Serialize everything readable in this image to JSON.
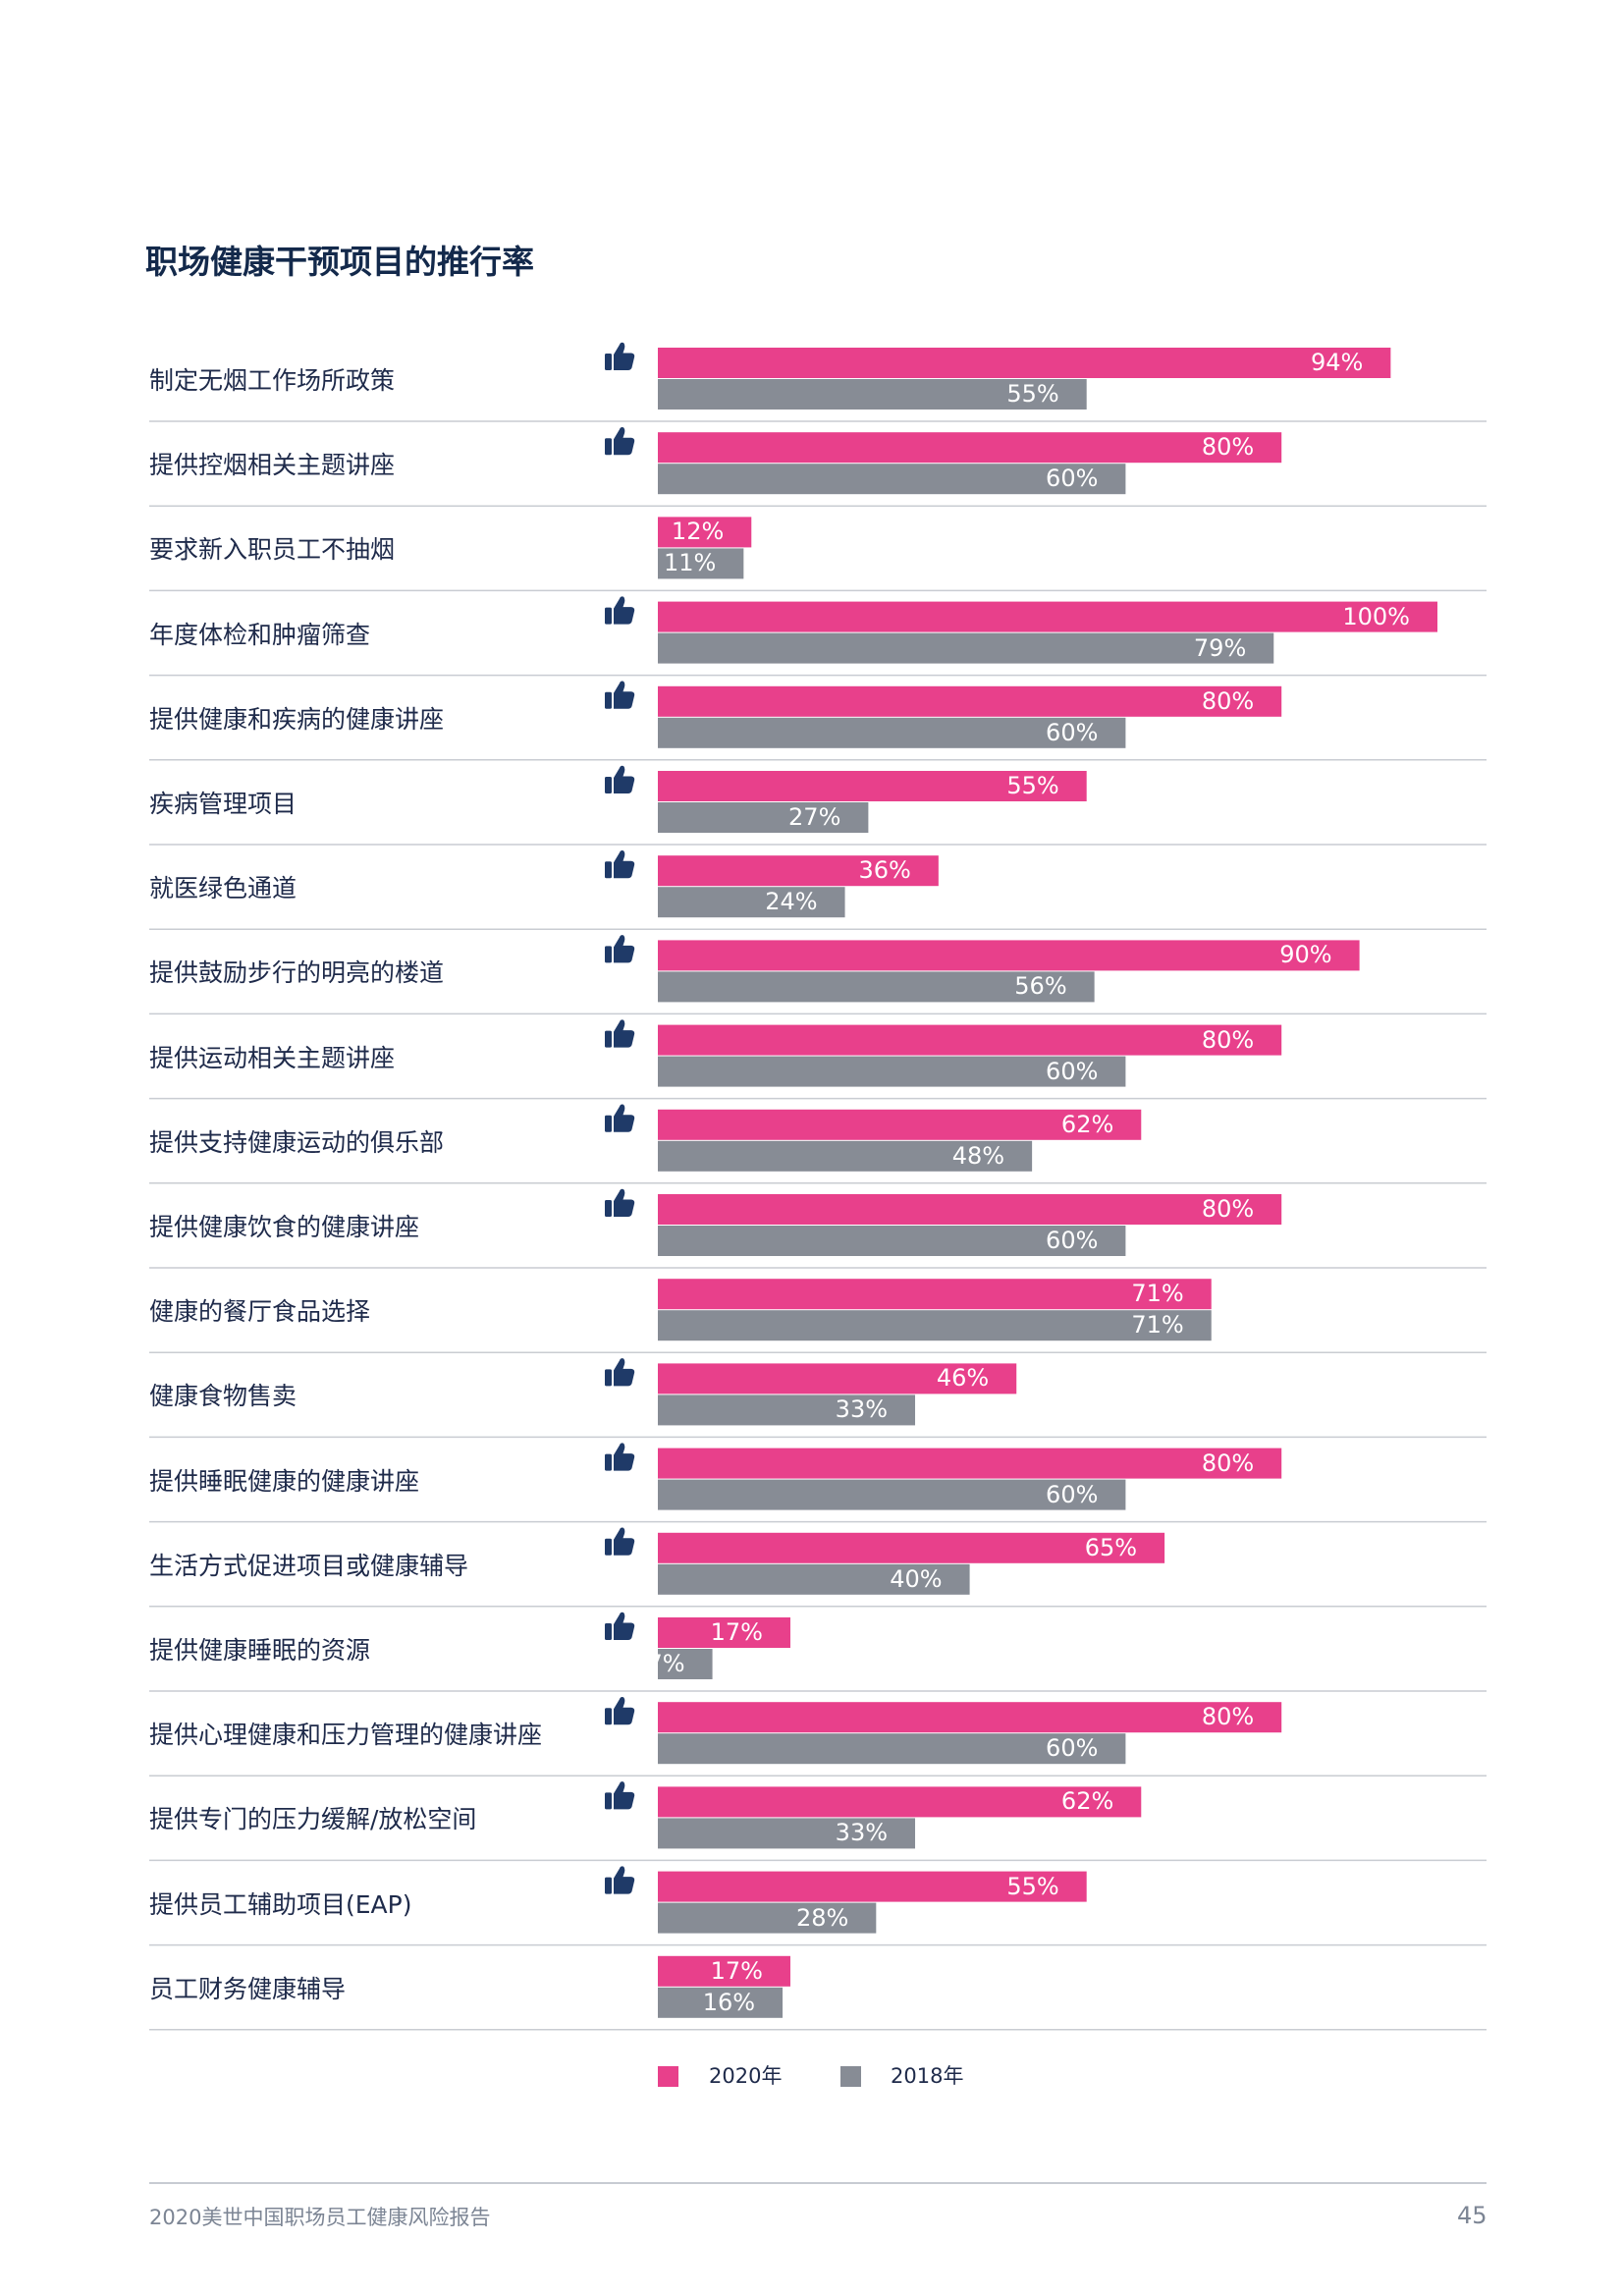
{
  "title": "职场健康干预项目的推行率",
  "colors": {
    "series_2020": "#e8408b",
    "series_2018": "#878c95",
    "thumb": "#1f3a68",
    "divider": "#c9ccd2"
  },
  "icons": {
    "row_marker": "thumbs-up-icon"
  },
  "chart_data": {
    "type": "bar",
    "orientation": "horizontal",
    "xlim": [
      0,
      100
    ],
    "unit": "%",
    "legend_placement": "bottom",
    "series": [
      {
        "name": "2020年",
        "values": [
          94,
          80,
          12,
          100,
          80,
          55,
          36,
          90,
          80,
          62,
          80,
          71,
          46,
          80,
          65,
          17,
          80,
          62,
          55,
          17
        ]
      },
      {
        "name": "2018年",
        "values": [
          55,
          60,
          11,
          79,
          60,
          27,
          24,
          56,
          60,
          48,
          60,
          71,
          33,
          60,
          40,
          7,
          60,
          33,
          28,
          16
        ]
      }
    ],
    "categories": [
      "制定无烟工作场所政策",
      "提供控烟相关主题讲座",
      "要求新入职员工不抽烟",
      "年度体检和肿瘤筛查",
      "提供健康和疾病的健康讲座",
      "疾病管理项目",
      "就医绿色通道",
      "提供鼓励步行的明亮的楼道",
      "提供运动相关主题讲座",
      "提供支持健康运动的俱乐部",
      "提供健康饮食的健康讲座",
      "健康的餐厅食品选择",
      "健康食物售卖",
      "提供睡眠健康的健康讲座",
      "生活方式促进项目或健康辅导",
      "提供健康睡眠的资源",
      "提供心理健康和压力管理的健康讲座",
      "提供专门的压力缓解/放松空间",
      "提供员工辅助项目(EAP)",
      "员工财务健康辅导"
    ],
    "thumbs_up": [
      true,
      true,
      false,
      true,
      true,
      true,
      true,
      true,
      true,
      true,
      true,
      false,
      true,
      true,
      true,
      true,
      true,
      true,
      true,
      false
    ]
  },
  "footer": {
    "report_title": "2020美世中国职场员工健康风险报告",
    "page_number": "45"
  }
}
